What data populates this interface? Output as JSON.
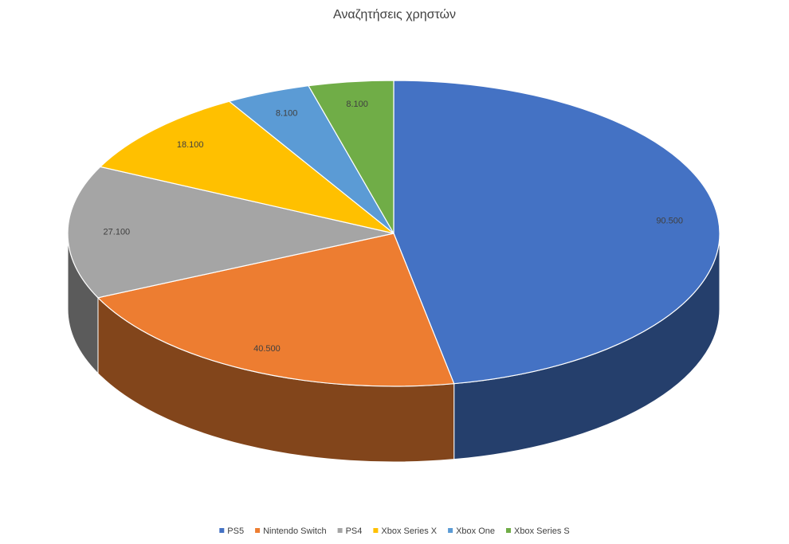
{
  "chart_data": {
    "type": "pie",
    "title": "Αναζητήσεις χρηστών",
    "categories": [
      "PS5",
      "Nintendo Switch",
      "PS4",
      "Xbox Series X",
      "Xbox One",
      "Xbox Series S"
    ],
    "values": [
      90500,
      40500,
      27100,
      18100,
      8100,
      8100
    ],
    "value_labels": [
      "90.500",
      "40.500",
      "27.100",
      "18.100",
      "8.100",
      "8.100"
    ],
    "colors": [
      "#4472c4",
      "#ed7d31",
      "#a5a5a5",
      "#ffc000",
      "#5b9bd5",
      "#70ad47"
    ],
    "legend": "bottom"
  }
}
